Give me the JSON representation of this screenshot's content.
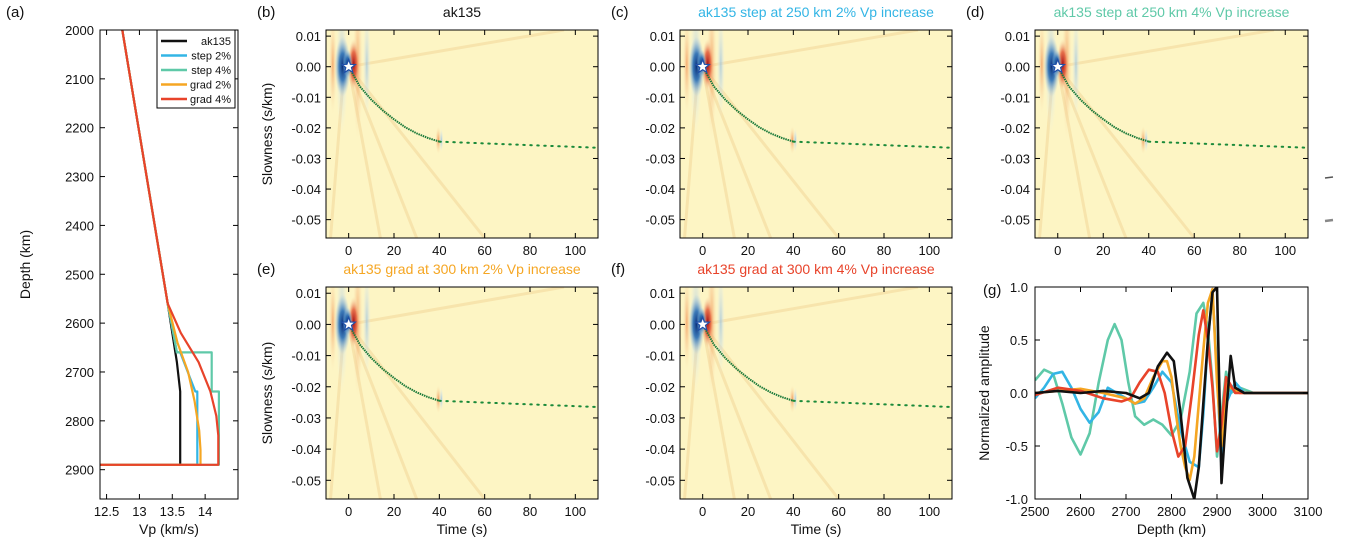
{
  "chart_data": [
    {
      "panel": "(a)",
      "type": "line",
      "xlabel": "Vp (km/s)",
      "ylabel": "Depth (km)",
      "xlim": [
        12.4,
        14.5
      ],
      "ylim": [
        2960,
        2000
      ],
      "x_ticks": [
        "12.5",
        "13",
        "13.5",
        "14"
      ],
      "x_tick_values": [
        12.5,
        13,
        13.5,
        14
      ],
      "y_ticks": [
        "2000",
        "2100",
        "2200",
        "2300",
        "2400",
        "2500",
        "2600",
        "2700",
        "2800",
        "2900"
      ],
      "y_tick_values": [
        2000,
        2100,
        2200,
        2300,
        2400,
        2500,
        2600,
        2700,
        2800,
        2900
      ],
      "legend_position": "top-right",
      "series": [
        {
          "name": "ak135",
          "color": "#111111",
          "x": [
            12.74,
            13.43,
            13.57,
            13.62,
            13.62,
            12.4
          ],
          "y": [
            2000,
            2560,
            2680,
            2740,
            2890,
            2890
          ]
        },
        {
          "name": "step 2%",
          "color": "#33b5e5",
          "x": [
            12.74,
            13.43,
            13.57,
            13.62,
            13.85,
            13.88,
            13.88,
            12.4
          ],
          "y": [
            2000,
            2560,
            2660,
            2660,
            2740,
            2740,
            2890,
            2890
          ]
        },
        {
          "name": "step 4%",
          "color": "#5fc9a8",
          "x": [
            12.74,
            13.43,
            13.57,
            14.1,
            14.1,
            14.21,
            14.21,
            12.4
          ],
          "y": [
            2000,
            2560,
            2660,
            2660,
            2740,
            2740,
            2890,
            2890
          ]
        },
        {
          "name": "grad 2%",
          "color": "#f5a623",
          "x": [
            12.74,
            13.43,
            13.58,
            13.74,
            13.84,
            13.91,
            13.93,
            13.93,
            12.4
          ],
          "y": [
            2000,
            2560,
            2640,
            2700,
            2760,
            2820,
            2860,
            2890,
            2890
          ]
        },
        {
          "name": "grad 4%",
          "color": "#e8432a",
          "x": [
            12.74,
            13.43,
            13.63,
            13.9,
            14.08,
            14.17,
            14.2,
            14.2,
            12.4
          ],
          "y": [
            2000,
            2560,
            2620,
            2680,
            2740,
            2790,
            2830,
            2890,
            2890
          ]
        }
      ]
    },
    {
      "panel": "(b)",
      "type": "heatmap",
      "title": "ak135",
      "title_color": "#111111",
      "ylabel": "Slowness (s/km)",
      "xlabel": "",
      "xlim": [
        -10,
        110
      ],
      "ylim": [
        -0.056,
        0.012
      ],
      "x_ticks": [
        "0",
        "20",
        "40",
        "60",
        "80",
        "100"
      ],
      "y_ticks": [
        "0.01",
        "0.00",
        "-0.01",
        "-0.02",
        "-0.03",
        "-0.04",
        "-0.05"
      ],
      "marker": {
        "x": 0,
        "y": 0,
        "shape": "star"
      },
      "fit_curve": {
        "x": [
          0,
          5,
          10,
          15,
          20,
          25,
          30,
          35,
          40
        ],
        "y": [
          0,
          -0.0065,
          -0.0108,
          -0.0143,
          -0.0172,
          -0.0198,
          -0.0218,
          -0.0233,
          -0.0245
        ]
      },
      "extrapolation": {
        "x": [
          40,
          110
        ],
        "y": [
          -0.0245,
          -0.0265
        ]
      },
      "secondary_x": 40
    },
    {
      "panel": "(c)",
      "type": "heatmap",
      "title": "ak135 step at 250 km 2% Vp increase",
      "title_color": "#33b5e5",
      "xlabel": "",
      "xlim": [
        -10,
        110
      ],
      "ylim": [
        -0.056,
        0.012
      ],
      "x_ticks": [
        "0",
        "20",
        "40",
        "60",
        "80",
        "100"
      ],
      "y_ticks": [
        "0.01",
        "0.00",
        "-0.01",
        "-0.02",
        "-0.03",
        "-0.04",
        "-0.05"
      ],
      "marker": {
        "x": 0,
        "y": 0,
        "shape": "star"
      },
      "fit_curve": {
        "x": [
          0,
          5,
          10,
          15,
          20,
          25,
          30,
          35,
          40
        ],
        "y": [
          0,
          -0.0065,
          -0.0108,
          -0.0143,
          -0.0172,
          -0.0198,
          -0.0218,
          -0.0233,
          -0.0245
        ]
      },
      "extrapolation": {
        "x": [
          40,
          110
        ],
        "y": [
          -0.0245,
          -0.0265
        ]
      },
      "secondary_x": 40
    },
    {
      "panel": "(d)",
      "type": "heatmap",
      "title": "ak135 step at 250 km 4% Vp increase",
      "title_color": "#5fc9a8",
      "xlabel": "",
      "xlim": [
        -10,
        110
      ],
      "ylim": [
        -0.056,
        0.012
      ],
      "x_ticks": [
        "0",
        "20",
        "40",
        "60",
        "80",
        "100"
      ],
      "y_ticks": [
        "0.01",
        "0.00",
        "-0.01",
        "-0.02",
        "-0.03",
        "-0.04",
        "-0.05"
      ],
      "marker": {
        "x": 0,
        "y": 0,
        "shape": "star"
      },
      "fit_curve": {
        "x": [
          0,
          5,
          10,
          15,
          20,
          25,
          30,
          35,
          40
        ],
        "y": [
          0,
          -0.0065,
          -0.0108,
          -0.0143,
          -0.0172,
          -0.0198,
          -0.0218,
          -0.0233,
          -0.0245
        ]
      },
      "extrapolation": {
        "x": [
          40,
          110
        ],
        "y": [
          -0.0245,
          -0.0265
        ]
      },
      "secondary_x": 38
    },
    {
      "panel": "(e)",
      "type": "heatmap",
      "title": "ak135 grad at 300 km 2% Vp increase",
      "title_color": "#f5a623",
      "ylabel": "Slowness (s/km)",
      "xlabel": "Time (s)",
      "xlim": [
        -10,
        110
      ],
      "ylim": [
        -0.056,
        0.012
      ],
      "x_ticks": [
        "0",
        "20",
        "40",
        "60",
        "80",
        "100"
      ],
      "y_ticks": [
        "0.01",
        "0.00",
        "-0.01",
        "-0.02",
        "-0.03",
        "-0.04",
        "-0.05"
      ],
      "marker": {
        "x": 0,
        "y": 0,
        "shape": "star"
      },
      "fit_curve": {
        "x": [
          0,
          5,
          10,
          15,
          20,
          25,
          30,
          35,
          40
        ],
        "y": [
          0,
          -0.0065,
          -0.0108,
          -0.0143,
          -0.0172,
          -0.0198,
          -0.0218,
          -0.0233,
          -0.0245
        ]
      },
      "extrapolation": {
        "x": [
          40,
          110
        ],
        "y": [
          -0.0245,
          -0.0265
        ]
      },
      "secondary_x": 40
    },
    {
      "panel": "(f)",
      "type": "heatmap",
      "title": "ak135 grad at 300 km 4% Vp increase",
      "title_color": "#e8432a",
      "xlabel": "Time (s)",
      "xlim": [
        -10,
        110
      ],
      "ylim": [
        -0.056,
        0.012
      ],
      "x_ticks": [
        "0",
        "20",
        "40",
        "60",
        "80",
        "100"
      ],
      "y_ticks": [
        "0.01",
        "0.00",
        "-0.01",
        "-0.02",
        "-0.03",
        "-0.04",
        "-0.05"
      ],
      "marker": {
        "x": 0,
        "y": 0,
        "shape": "star"
      },
      "fit_curve": {
        "x": [
          0,
          5,
          10,
          15,
          20,
          25,
          30,
          35,
          40
        ],
        "y": [
          0,
          -0.0065,
          -0.0108,
          -0.0143,
          -0.0172,
          -0.0198,
          -0.0218,
          -0.0233,
          -0.0245
        ]
      },
      "extrapolation": {
        "x": [
          40,
          110
        ],
        "y": [
          -0.0245,
          -0.0265
        ]
      },
      "secondary_x": 40
    },
    {
      "panel": "(g)",
      "type": "line",
      "xlabel": "Depth (km)",
      "ylabel": "Normalized amplitude",
      "xlim": [
        2500,
        3100
      ],
      "ylim": [
        -1.0,
        1.0
      ],
      "x_ticks": [
        "2500",
        "2600",
        "2700",
        "2800",
        "2900",
        "3000",
        "3100"
      ],
      "x_tick_values": [
        2500,
        2600,
        2700,
        2800,
        2900,
        3000,
        3100
      ],
      "y_ticks": [
        "1.0",
        "0.5",
        "0.0",
        "-0.5",
        "-1.0"
      ],
      "y_tick_values": [
        1.0,
        0.5,
        0.0,
        -0.5,
        -1.0
      ],
      "series": [
        {
          "name": "step 4%",
          "color": "#5fc9a8",
          "x": [
            2500,
            2520,
            2540,
            2560,
            2580,
            2600,
            2620,
            2640,
            2660,
            2675,
            2690,
            2705,
            2720,
            2740,
            2760,
            2780,
            2800,
            2820,
            2840,
            2855,
            2870,
            2880,
            2890,
            2900,
            2910,
            2920,
            2930,
            2950,
            2980,
            3020,
            3100
          ],
          "y": [
            0.12,
            0.22,
            0.18,
            -0.1,
            -0.42,
            -0.58,
            -0.38,
            0.1,
            0.5,
            0.65,
            0.5,
            0.1,
            -0.22,
            -0.3,
            -0.25,
            -0.3,
            -0.4,
            -0.25,
            0.2,
            0.75,
            0.85,
            0.6,
            0.1,
            -0.6,
            -0.2,
            0.2,
            0.0,
            0.05,
            0.0,
            0.0,
            0.0
          ]
        },
        {
          "name": "step 2%",
          "color": "#33b5e5",
          "x": [
            2500,
            2520,
            2540,
            2560,
            2580,
            2600,
            2620,
            2640,
            2660,
            2680,
            2700,
            2720,
            2740,
            2760,
            2780,
            2800,
            2820,
            2840,
            2860,
            2870,
            2880,
            2890,
            2900,
            2910,
            2920,
            2940,
            2960,
            3000,
            3100
          ],
          "y": [
            -0.05,
            0.05,
            0.18,
            0.2,
            0.05,
            -0.15,
            -0.28,
            -0.18,
            0.05,
            0.0,
            -0.05,
            -0.1,
            -0.08,
            0.05,
            0.2,
            0.1,
            -0.35,
            -0.65,
            -0.7,
            -0.2,
            0.5,
            0.95,
            0.2,
            -0.7,
            -0.1,
            0.1,
            0.0,
            0.0,
            0.0
          ]
        },
        {
          "name": "grad 2%",
          "color": "#f5a623",
          "x": [
            2500,
            2550,
            2600,
            2650,
            2700,
            2720,
            2740,
            2760,
            2780,
            2790,
            2800,
            2810,
            2820,
            2830,
            2840,
            2850,
            2860,
            2870,
            2880,
            2890,
            2900,
            2910,
            2920,
            2930,
            2950,
            3000,
            3100
          ],
          "y": [
            0.0,
            0.02,
            0.04,
            0.0,
            -0.05,
            -0.1,
            -0.05,
            0.15,
            0.3,
            0.3,
            0.15,
            -0.2,
            -0.5,
            -0.7,
            -0.82,
            -0.6,
            -0.1,
            0.4,
            0.85,
            0.98,
            0.1,
            -0.5,
            0.1,
            0.05,
            0.0,
            0.0,
            0.0
          ]
        },
        {
          "name": "grad 4%",
          "color": "#e8432a",
          "x": [
            2500,
            2550,
            2600,
            2650,
            2690,
            2710,
            2730,
            2750,
            2770,
            2785,
            2800,
            2815,
            2830,
            2845,
            2860,
            2870,
            2880,
            2890,
            2900,
            2910,
            2920,
            2940,
            3000,
            3100
          ],
          "y": [
            -0.02,
            0.05,
            0.02,
            -0.05,
            -0.08,
            -0.05,
            0.1,
            0.22,
            0.2,
            0.0,
            -0.35,
            -0.6,
            -0.5,
            0.0,
            0.55,
            0.78,
            0.5,
            0.05,
            -0.55,
            -0.3,
            0.15,
            0.0,
            0.0,
            0.0
          ]
        },
        {
          "name": "ak135",
          "color": "#111111",
          "x": [
            2500,
            2550,
            2600,
            2650,
            2700,
            2730,
            2750,
            2770,
            2790,
            2805,
            2820,
            2835,
            2850,
            2860,
            2870,
            2880,
            2890,
            2900,
            2910,
            2920,
            2930,
            2940,
            2960,
            3000,
            3100
          ],
          "y": [
            0.0,
            0.02,
            0.0,
            0.02,
            0.0,
            -0.05,
            0.0,
            0.25,
            0.38,
            0.3,
            -0.2,
            -0.8,
            -1.0,
            -0.7,
            -0.1,
            0.5,
            0.95,
            1.0,
            -0.85,
            -0.2,
            0.35,
            0.05,
            0.0,
            0.0,
            0.0
          ]
        }
      ]
    }
  ]
}
